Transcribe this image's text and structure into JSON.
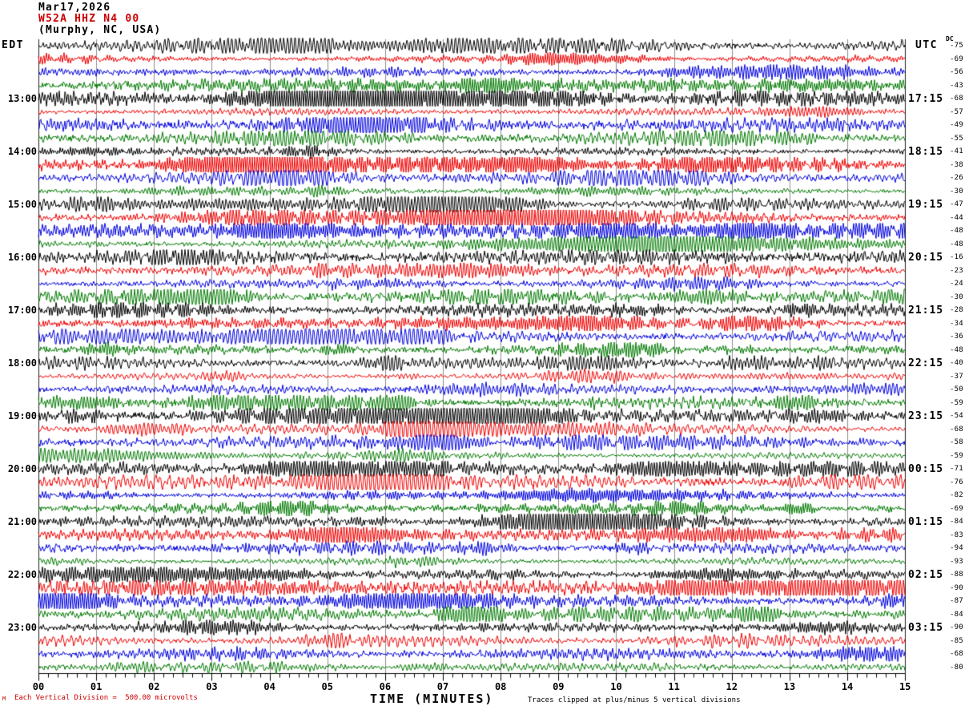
{
  "header": {
    "date": "Mar17,2026",
    "station": "W52A HHZ N4 00",
    "location": "(Murphy, NC, USA)"
  },
  "labels": {
    "left_tz": "EDT",
    "right_tz": "UTC",
    "dc": "DC"
  },
  "x_axis": {
    "title": "TIME (MINUTES)",
    "ticks": [
      "00",
      "01",
      "02",
      "03",
      "04",
      "05",
      "06",
      "07",
      "08",
      "09",
      "10",
      "11",
      "12",
      "13",
      "14",
      "15"
    ]
  },
  "footer": {
    "scale_note": "Each Vertical Division =  500.00 microvolts",
    "clip_note": "Traces clipped at plus/minus 5 vertical divisions",
    "m_glyph": "M"
  },
  "colors": {
    "trace_cycle": [
      "#000000",
      "#ee0000",
      "#0000dd",
      "#007a00"
    ],
    "accent_red": "#cc0000",
    "grid": "#8c8c8c",
    "axis": "#000000"
  },
  "chart_data": {
    "type": "seismogram",
    "x_unit": "minutes",
    "x_range": [
      0,
      15
    ],
    "minutes_per_line": 15,
    "row_color_cycle": [
      "black",
      "red",
      "blue",
      "green"
    ],
    "left_times_edt": [
      "13:00",
      "14:00",
      "15:00",
      "16:00",
      "17:00",
      "18:00",
      "19:00",
      "20:00",
      "21:00",
      "22:00",
      "23:00"
    ],
    "right_times_utc": [
      "17:15",
      "18:15",
      "19:15",
      "20:15",
      "21:15",
      "22:15",
      "23:15",
      "00:15",
      "01:15",
      "02:15",
      "03:15"
    ],
    "rows": [
      {
        "edt": "",
        "utc": "",
        "dc": -75
      },
      {
        "edt": "",
        "utc": "",
        "dc": -69
      },
      {
        "edt": "",
        "utc": "",
        "dc": -56
      },
      {
        "edt": "",
        "utc": "",
        "dc": -43
      },
      {
        "edt": "13:00",
        "utc": "17:15",
        "dc": -68
      },
      {
        "edt": "",
        "utc": "",
        "dc": -57
      },
      {
        "edt": "",
        "utc": "",
        "dc": -49
      },
      {
        "edt": "",
        "utc": "",
        "dc": -55
      },
      {
        "edt": "14:00",
        "utc": "18:15",
        "dc": -41
      },
      {
        "edt": "",
        "utc": "",
        "dc": -38
      },
      {
        "edt": "",
        "utc": "",
        "dc": -26
      },
      {
        "edt": "",
        "utc": "",
        "dc": -30
      },
      {
        "edt": "15:00",
        "utc": "19:15",
        "dc": -47
      },
      {
        "edt": "",
        "utc": "",
        "dc": -44
      },
      {
        "edt": "",
        "utc": "",
        "dc": -48
      },
      {
        "edt": "",
        "utc": "",
        "dc": -48
      },
      {
        "edt": "16:00",
        "utc": "20:15",
        "dc": -16
      },
      {
        "edt": "",
        "utc": "",
        "dc": -23
      },
      {
        "edt": "",
        "utc": "",
        "dc": -24
      },
      {
        "edt": "",
        "utc": "",
        "dc": -30
      },
      {
        "edt": "17:00",
        "utc": "21:15",
        "dc": -28
      },
      {
        "edt": "",
        "utc": "",
        "dc": -34
      },
      {
        "edt": "",
        "utc": "",
        "dc": -36
      },
      {
        "edt": "",
        "utc": "",
        "dc": -48
      },
      {
        "edt": "18:00",
        "utc": "22:15",
        "dc": -40
      },
      {
        "edt": "",
        "utc": "",
        "dc": -37
      },
      {
        "edt": "",
        "utc": "",
        "dc": -50
      },
      {
        "edt": "",
        "utc": "",
        "dc": -59
      },
      {
        "edt": "19:00",
        "utc": "23:15",
        "dc": -54
      },
      {
        "edt": "",
        "utc": "",
        "dc": -68
      },
      {
        "edt": "",
        "utc": "",
        "dc": -58
      },
      {
        "edt": "",
        "utc": "",
        "dc": -59
      },
      {
        "edt": "20:00",
        "utc": "00:15",
        "dc": -71
      },
      {
        "edt": "",
        "utc": "",
        "dc": -76
      },
      {
        "edt": "",
        "utc": "",
        "dc": -82
      },
      {
        "edt": "",
        "utc": "",
        "dc": -69
      },
      {
        "edt": "21:00",
        "utc": "01:15",
        "dc": -84
      },
      {
        "edt": "",
        "utc": "",
        "dc": -83
      },
      {
        "edt": "",
        "utc": "",
        "dc": -94
      },
      {
        "edt": "",
        "utc": "",
        "dc": -93
      },
      {
        "edt": "22:00",
        "utc": "02:15",
        "dc": -88
      },
      {
        "edt": "",
        "utc": "",
        "dc": -90
      },
      {
        "edt": "",
        "utc": "",
        "dc": -87
      },
      {
        "edt": "",
        "utc": "",
        "dc": -84
      },
      {
        "edt": "23:00",
        "utc": "03:15",
        "dc": -90
      },
      {
        "edt": "",
        "utc": "",
        "dc": -85
      },
      {
        "edt": "",
        "utc": "",
        "dc": -68
      },
      {
        "edt": "",
        "utc": "",
        "dc": -80
      }
    ]
  }
}
